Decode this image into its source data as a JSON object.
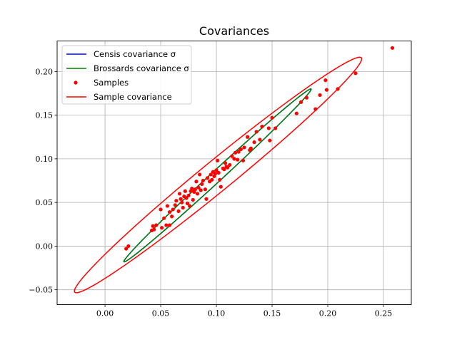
{
  "chart_data": {
    "type": "scatter",
    "title": "Covariances",
    "xlabel": "",
    "ylabel": "",
    "xlim": [
      -0.043,
      0.275
    ],
    "ylim": [
      -0.067,
      0.235
    ],
    "grid": true,
    "legend_position": "top-left",
    "xticks": [
      0.0,
      0.05,
      0.1,
      0.15,
      0.2,
      0.25
    ],
    "xtick_labels": [
      "0.00",
      "0.05",
      "0.10",
      "0.15",
      "0.20",
      "0.25"
    ],
    "yticks": [
      -0.05,
      0.0,
      0.05,
      0.1,
      0.15,
      0.2
    ],
    "ytick_labels": [
      "−0.05",
      "0.00",
      "0.05",
      "0.10",
      "0.15",
      "0.20"
    ],
    "series": [
      {
        "name": "Censis covariance σ",
        "kind": "ellipse",
        "color": "#0000ff",
        "center": [
          0.101,
          0.081
        ],
        "endpoints": [
          [
            0.017,
            -0.018
          ],
          [
            0.185,
            0.18
          ]
        ],
        "minor_halfwidth": 0.0055
      },
      {
        "name": "Brossards covariance σ",
        "kind": "ellipse",
        "color": "#008000",
        "center": [
          0.101,
          0.081
        ],
        "endpoints": [
          [
            0.017,
            -0.018
          ],
          [
            0.185,
            0.18
          ]
        ],
        "minor_halfwidth": 0.0055
      },
      {
        "name": "Samples",
        "kind": "points",
        "color": "#ff0000",
        "points": [
          [
            0.019,
            -0.003
          ],
          [
            0.021,
            0.0
          ],
          [
            0.042,
            0.018
          ],
          [
            0.043,
            0.023
          ],
          [
            0.044,
            0.019
          ],
          [
            0.046,
            0.024
          ],
          [
            0.05,
            0.042
          ],
          [
            0.051,
            0.021
          ],
          [
            0.053,
            0.032
          ],
          [
            0.055,
            0.024
          ],
          [
            0.056,
            0.046
          ],
          [
            0.058,
            0.039
          ],
          [
            0.058,
            0.024
          ],
          [
            0.06,
            0.034
          ],
          [
            0.061,
            0.042
          ],
          [
            0.063,
            0.047
          ],
          [
            0.064,
            0.052
          ],
          [
            0.066,
            0.04
          ],
          [
            0.067,
            0.06
          ],
          [
            0.068,
            0.054
          ],
          [
            0.069,
            0.05
          ],
          [
            0.07,
            0.044
          ],
          [
            0.071,
            0.057
          ],
          [
            0.072,
            0.063
          ],
          [
            0.073,
            0.055
          ],
          [
            0.074,
            0.049
          ],
          [
            0.075,
            0.058
          ],
          [
            0.076,
            0.046
          ],
          [
            0.077,
            0.063
          ],
          [
            0.078,
            0.066
          ],
          [
            0.079,
            0.053
          ],
          [
            0.08,
            0.062
          ],
          [
            0.081,
            0.065
          ],
          [
            0.082,
            0.074
          ],
          [
            0.083,
            0.06
          ],
          [
            0.084,
            0.067
          ],
          [
            0.085,
            0.082
          ],
          [
            0.086,
            0.064
          ],
          [
            0.087,
            0.071
          ],
          [
            0.088,
            0.075
          ],
          [
            0.09,
            0.065
          ],
          [
            0.091,
            0.054
          ],
          [
            0.092,
            0.078
          ],
          [
            0.094,
            0.074
          ],
          [
            0.095,
            0.082
          ],
          [
            0.096,
            0.076
          ],
          [
            0.097,
            0.085
          ],
          [
            0.098,
            0.08
          ],
          [
            0.099,
            0.083
          ],
          [
            0.1,
            0.087
          ],
          [
            0.101,
            0.098
          ],
          [
            0.102,
            0.084
          ],
          [
            0.103,
            0.076
          ],
          [
            0.104,
            0.068
          ],
          [
            0.106,
            0.089
          ],
          [
            0.107,
            0.088
          ],
          [
            0.108,
            0.095
          ],
          [
            0.109,
            0.091
          ],
          [
            0.11,
            0.09
          ],
          [
            0.112,
            0.093
          ],
          [
            0.114,
            0.103
          ],
          [
            0.116,
            0.1
          ],
          [
            0.117,
            0.107
          ],
          [
            0.119,
            0.099
          ],
          [
            0.12,
            0.108
          ],
          [
            0.122,
            0.111
          ],
          [
            0.124,
            0.098
          ],
          [
            0.125,
            0.113
          ],
          [
            0.128,
            0.125
          ],
          [
            0.13,
            0.11
          ],
          [
            0.131,
            0.112
          ],
          [
            0.134,
            0.119
          ],
          [
            0.136,
            0.131
          ],
          [
            0.139,
            0.122
          ],
          [
            0.141,
            0.137
          ],
          [
            0.147,
            0.135
          ],
          [
            0.148,
            0.121
          ],
          [
            0.15,
            0.147
          ],
          [
            0.153,
            0.135
          ],
          [
            0.172,
            0.152
          ],
          [
            0.176,
            0.165
          ],
          [
            0.181,
            0.17
          ],
          [
            0.189,
            0.157
          ],
          [
            0.193,
            0.173
          ],
          [
            0.198,
            0.19
          ],
          [
            0.199,
            0.179
          ],
          [
            0.209,
            0.18
          ],
          [
            0.225,
            0.198
          ],
          [
            0.258,
            0.227
          ]
        ]
      },
      {
        "name": "Sample covariance",
        "kind": "ellipse",
        "color": "#ff0000",
        "center": [
          0.1015,
          0.0815
        ],
        "endpoints": [
          [
            -0.027,
            -0.053
          ],
          [
            0.23,
            0.216
          ]
        ],
        "minor_halfwidth": 0.0155
      }
    ]
  }
}
